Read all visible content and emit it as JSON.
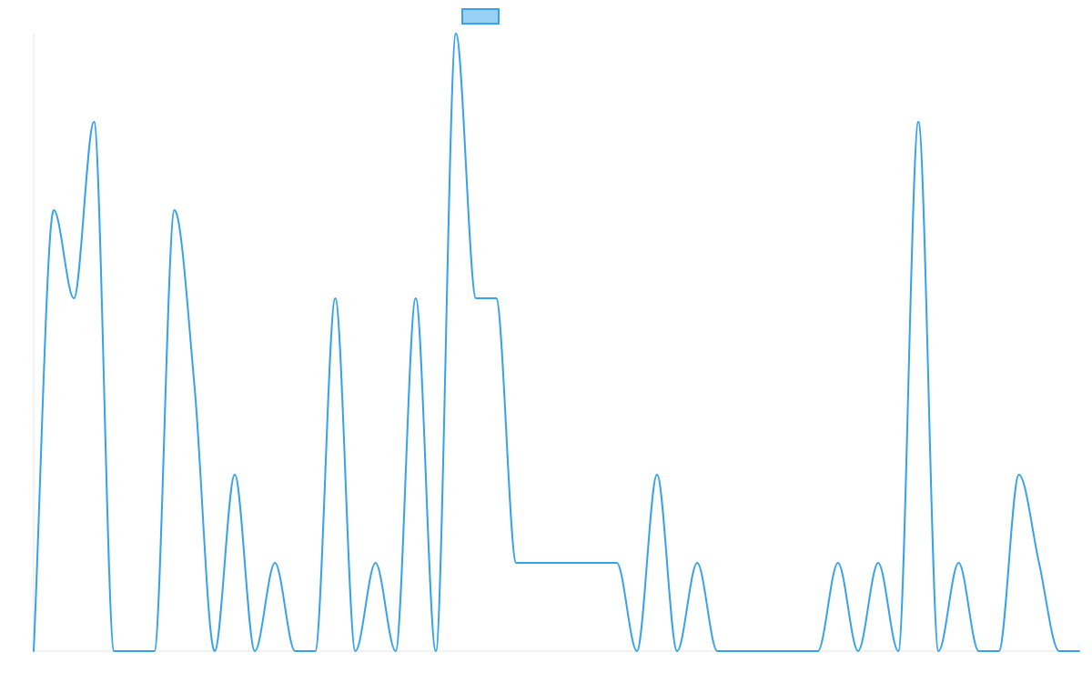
{
  "chart_data": {
    "type": "line",
    "title": "",
    "xlabel": "",
    "ylabel": "",
    "grid": false,
    "legend": "top-center",
    "ylim": [
      0,
      7
    ],
    "series": [
      {
        "color": "#36a2eb",
        "fill_color": "#9ad0f5",
        "values": [
          0,
          5,
          4,
          6,
          0,
          0,
          0,
          5,
          3,
          0,
          2,
          0,
          1,
          0,
          0,
          4,
          0,
          1,
          0,
          4,
          0,
          7,
          4,
          4,
          1,
          1,
          1,
          1,
          1,
          1,
          0,
          2,
          0,
          1,
          0,
          0,
          0,
          0,
          0,
          0,
          1,
          0,
          1,
          0,
          6,
          0,
          1,
          0,
          0,
          2,
          1,
          0,
          0
        ]
      }
    ]
  }
}
